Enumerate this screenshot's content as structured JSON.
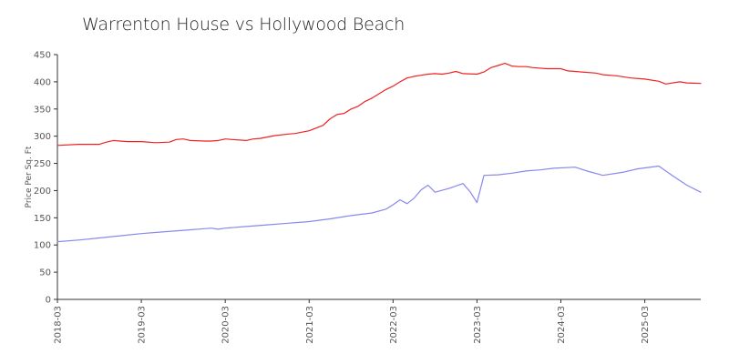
{
  "chart_data": {
    "type": "line",
    "title": "Warrenton House vs Hollywood Beach",
    "ylabel": "Price Per Sq. Ft",
    "xlabel": "",
    "ylim": [
      0,
      450
    ],
    "xlim": [
      "2018-03",
      "2025-11"
    ],
    "yticks": [
      "0",
      "50",
      "100",
      "150",
      "200",
      "250",
      "300",
      "350",
      "400",
      "450"
    ],
    "xticks": [
      "2018-03",
      "2019-03",
      "2020-03",
      "2021-03",
      "2022-03",
      "2023-03",
      "2024-03",
      "2025-03"
    ],
    "grid": false,
    "legend": "none",
    "series": [
      {
        "color": "#ee2222",
        "points": [
          [
            "2018-03",
            283
          ],
          [
            "2018-06",
            285
          ],
          [
            "2018-09",
            285
          ],
          [
            "2018-10",
            289
          ],
          [
            "2018-11",
            292
          ],
          [
            "2019-01",
            290
          ],
          [
            "2019-03",
            290
          ],
          [
            "2019-05",
            288
          ],
          [
            "2019-07",
            289
          ],
          [
            "2019-08",
            294
          ],
          [
            "2019-09",
            295
          ],
          [
            "2019-10",
            292
          ],
          [
            "2019-12",
            291
          ],
          [
            "2020-01",
            291
          ],
          [
            "2020-02",
            292
          ],
          [
            "2020-03",
            295
          ],
          [
            "2020-04",
            294
          ],
          [
            "2020-06",
            292
          ],
          [
            "2020-07",
            295
          ],
          [
            "2020-08",
            296
          ],
          [
            "2020-10",
            301
          ],
          [
            "2020-12",
            304
          ],
          [
            "2021-01",
            305
          ],
          [
            "2021-03",
            310
          ],
          [
            "2021-04",
            315
          ],
          [
            "2021-05",
            320
          ],
          [
            "2021-06",
            332
          ],
          [
            "2021-07",
            340
          ],
          [
            "2021-08",
            342
          ],
          [
            "2021-09",
            350
          ],
          [
            "2021-10",
            355
          ],
          [
            "2021-11",
            364
          ],
          [
            "2021-12",
            370
          ],
          [
            "2022-01",
            378
          ],
          [
            "2022-02",
            386
          ],
          [
            "2022-03",
            392
          ],
          [
            "2022-04",
            400
          ],
          [
            "2022-05",
            407
          ],
          [
            "2022-06",
            410
          ],
          [
            "2022-07",
            412
          ],
          [
            "2022-08",
            414
          ],
          [
            "2022-09",
            415
          ],
          [
            "2022-10",
            414
          ],
          [
            "2022-11",
            416
          ],
          [
            "2022-12",
            419
          ],
          [
            "2023-01",
            415
          ],
          [
            "2023-03",
            414
          ],
          [
            "2023-04",
            418
          ],
          [
            "2023-05",
            426
          ],
          [
            "2023-06",
            430
          ],
          [
            "2023-07",
            434
          ],
          [
            "2023-08",
            429
          ],
          [
            "2023-09",
            428
          ],
          [
            "2023-10",
            428
          ],
          [
            "2023-11",
            426
          ],
          [
            "2024-01",
            424
          ],
          [
            "2024-03",
            424
          ],
          [
            "2024-04",
            420
          ],
          [
            "2024-06",
            418
          ],
          [
            "2024-08",
            416
          ],
          [
            "2024-09",
            413
          ],
          [
            "2024-11",
            411
          ],
          [
            "2025-01",
            407
          ],
          [
            "2025-03",
            405
          ],
          [
            "2025-05",
            401
          ],
          [
            "2025-06",
            396
          ],
          [
            "2025-08",
            400
          ],
          [
            "2025-09",
            398
          ],
          [
            "2025-11",
            397
          ]
        ]
      },
      {
        "color": "#8888ee",
        "points": [
          [
            "2018-03",
            106
          ],
          [
            "2018-06",
            109
          ],
          [
            "2018-09",
            113
          ],
          [
            "2018-12",
            117
          ],
          [
            "2019-03",
            121
          ],
          [
            "2019-06",
            124
          ],
          [
            "2019-09",
            127
          ],
          [
            "2019-12",
            130
          ],
          [
            "2020-01",
            131
          ],
          [
            "2020-02",
            129
          ],
          [
            "2020-03",
            131
          ],
          [
            "2020-06",
            134
          ],
          [
            "2020-09",
            137
          ],
          [
            "2020-12",
            140
          ],
          [
            "2021-03",
            143
          ],
          [
            "2021-06",
            148
          ],
          [
            "2021-09",
            154
          ],
          [
            "2021-12",
            159
          ],
          [
            "2022-02",
            166
          ],
          [
            "2022-03",
            174
          ],
          [
            "2022-04",
            183
          ],
          [
            "2022-05",
            176
          ],
          [
            "2022-06",
            186
          ],
          [
            "2022-07",
            201
          ],
          [
            "2022-08",
            210
          ],
          [
            "2022-09",
            197
          ],
          [
            "2022-11",
            204
          ],
          [
            "2023-01",
            213
          ],
          [
            "2023-02",
            198
          ],
          [
            "2023-03",
            178
          ],
          [
            "2023-04",
            228
          ],
          [
            "2023-06",
            229
          ],
          [
            "2023-08",
            232
          ],
          [
            "2023-10",
            236
          ],
          [
            "2023-12",
            238
          ],
          [
            "2024-02",
            241
          ],
          [
            "2024-05",
            243
          ],
          [
            "2024-07",
            235
          ],
          [
            "2024-09",
            228
          ],
          [
            "2024-12",
            234
          ],
          [
            "2025-02",
            240
          ],
          [
            "2025-05",
            245
          ],
          [
            "2025-07",
            227
          ],
          [
            "2025-09",
            210
          ],
          [
            "2025-11",
            197
          ]
        ]
      }
    ]
  }
}
